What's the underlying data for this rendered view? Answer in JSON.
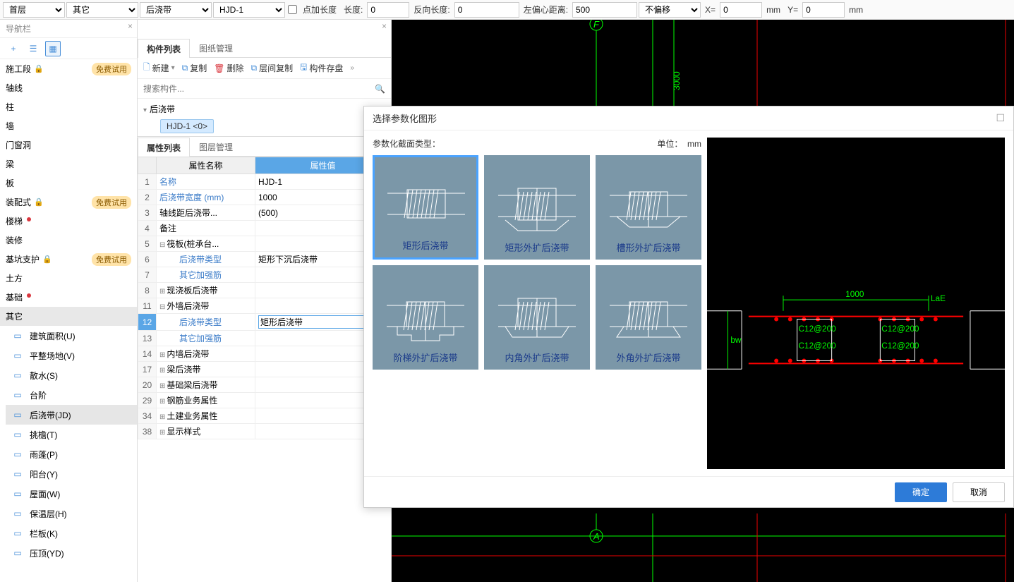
{
  "toolbar": {
    "floor": "首层",
    "category": "其它",
    "type": "后浇带",
    "instance": "HJD-1",
    "point_add_length": "点加长度",
    "length_lbl": "长度:",
    "length_val": "0",
    "rev_length_lbl": "反向长度:",
    "rev_length_val": "0",
    "left_offset_lbl": "左偏心距离:",
    "left_offset_val": "500",
    "no_offset": "不偏移",
    "x_lbl": "X=",
    "x_val": "0",
    "mm1": "mm",
    "y_lbl": "Y=",
    "y_val": "0",
    "mm2": "mm"
  },
  "nav": {
    "title": "导航栏",
    "items": [
      {
        "label": "施工段",
        "lock": true,
        "badge": "免费试用"
      },
      {
        "label": "轴线"
      },
      {
        "label": "柱"
      },
      {
        "label": "墙"
      },
      {
        "label": "门窗洞"
      },
      {
        "label": "梁"
      },
      {
        "label": "板"
      },
      {
        "label": "装配式",
        "lock": true,
        "badge": "免费试用"
      },
      {
        "label": "楼梯",
        "dot": true
      },
      {
        "label": "装修"
      },
      {
        "label": "基坑支护",
        "lock": true,
        "badge": "免费试用"
      },
      {
        "label": "土方"
      },
      {
        "label": "基础",
        "dot": true
      },
      {
        "label": "其它",
        "active": true
      }
    ],
    "subs": [
      {
        "label": "建筑面积(U)"
      },
      {
        "label": "平整场地(V)"
      },
      {
        "label": "散水(S)"
      },
      {
        "label": "台阶"
      },
      {
        "label": "后浇带(JD)",
        "active": true
      },
      {
        "label": "挑檐(T)"
      },
      {
        "label": "雨蓬(P)"
      },
      {
        "label": "阳台(Y)"
      },
      {
        "label": "屋面(W)"
      },
      {
        "label": "保温层(H)"
      },
      {
        "label": "栏板(K)"
      },
      {
        "label": "压顶(YD)"
      }
    ]
  },
  "mid": {
    "tab1": "构件列表",
    "tab2": "图纸管理",
    "new": "新建",
    "copy": "复制",
    "delete": "删除",
    "layer_copy": "层间复制",
    "store": "构件存盘",
    "search_placeholder": "搜索构件...",
    "tree_root": "后浇带",
    "tree_item": "HJD-1  <0>"
  },
  "props": {
    "tab1": "属性列表",
    "tab2": "图层管理",
    "col_name": "属性名称",
    "col_val": "属性值",
    "rows": [
      {
        "n": "1",
        "name": "名称",
        "val": "HJD-1",
        "link": true
      },
      {
        "n": "2",
        "name": "后浇带宽度 (mm)",
        "val": "1000",
        "link": true
      },
      {
        "n": "3",
        "name": "轴线距后浇带...",
        "val": "(500)"
      },
      {
        "n": "4",
        "name": "备注",
        "val": ""
      },
      {
        "n": "5",
        "name": "筏板(桩承台...",
        "val": "",
        "group": true,
        "expanded": true
      },
      {
        "n": "6",
        "name": "后浇带类型",
        "val": "矩形下沉后浇带",
        "link": true,
        "indent": 2
      },
      {
        "n": "7",
        "name": "其它加强筋",
        "val": "",
        "link": true,
        "indent": 2
      },
      {
        "n": "8",
        "name": "现浇板后浇带",
        "val": "",
        "group": true
      },
      {
        "n": "11",
        "name": "外墙后浇带",
        "val": "",
        "group": true,
        "expanded": true
      },
      {
        "n": "12",
        "name": "后浇带类型",
        "val": "矩形后浇带",
        "link": true,
        "indent": 2,
        "sel": true
      },
      {
        "n": "13",
        "name": "其它加强筋",
        "val": "",
        "link": true,
        "indent": 2
      },
      {
        "n": "14",
        "name": "内墙后浇带",
        "val": "",
        "group": true
      },
      {
        "n": "17",
        "name": "梁后浇带",
        "val": "",
        "group": true
      },
      {
        "n": "20",
        "name": "基础梁后浇带",
        "val": "",
        "group": true
      },
      {
        "n": "29",
        "name": "钢筋业务属性",
        "val": "",
        "group": true
      },
      {
        "n": "34",
        "name": "土建业务属性",
        "val": "",
        "group": true
      },
      {
        "n": "38",
        "name": "显示样式",
        "val": "",
        "group": true
      }
    ]
  },
  "canvas": {
    "axis_f": "F",
    "axis_a": "A",
    "dim_3000": "3000"
  },
  "dialog": {
    "title": "选择参数化图形",
    "section_type": "参数化截面类型：",
    "unit_lbl": "单位：",
    "unit_val": "mm",
    "shapes": [
      {
        "name": "矩形后浇带",
        "selected": true,
        "kind": "rect"
      },
      {
        "name": "矩形外扩后浇带",
        "kind": "rect-ext"
      },
      {
        "name": "槽形外扩后浇带",
        "kind": "channel"
      },
      {
        "name": "阶梯外扩后浇带",
        "kind": "step"
      },
      {
        "name": "内角外扩后浇带",
        "kind": "inner"
      },
      {
        "name": "外角外扩后浇带",
        "kind": "outer"
      }
    ],
    "preview": {
      "dim_1000": "1000",
      "lae": "LaE",
      "bw": "bw",
      "rebar1": "C12@200",
      "rebar2": "C12@200",
      "rebar3": "C12@200",
      "rebar4": "C12@200"
    },
    "ok": "确定",
    "cancel": "取消"
  }
}
